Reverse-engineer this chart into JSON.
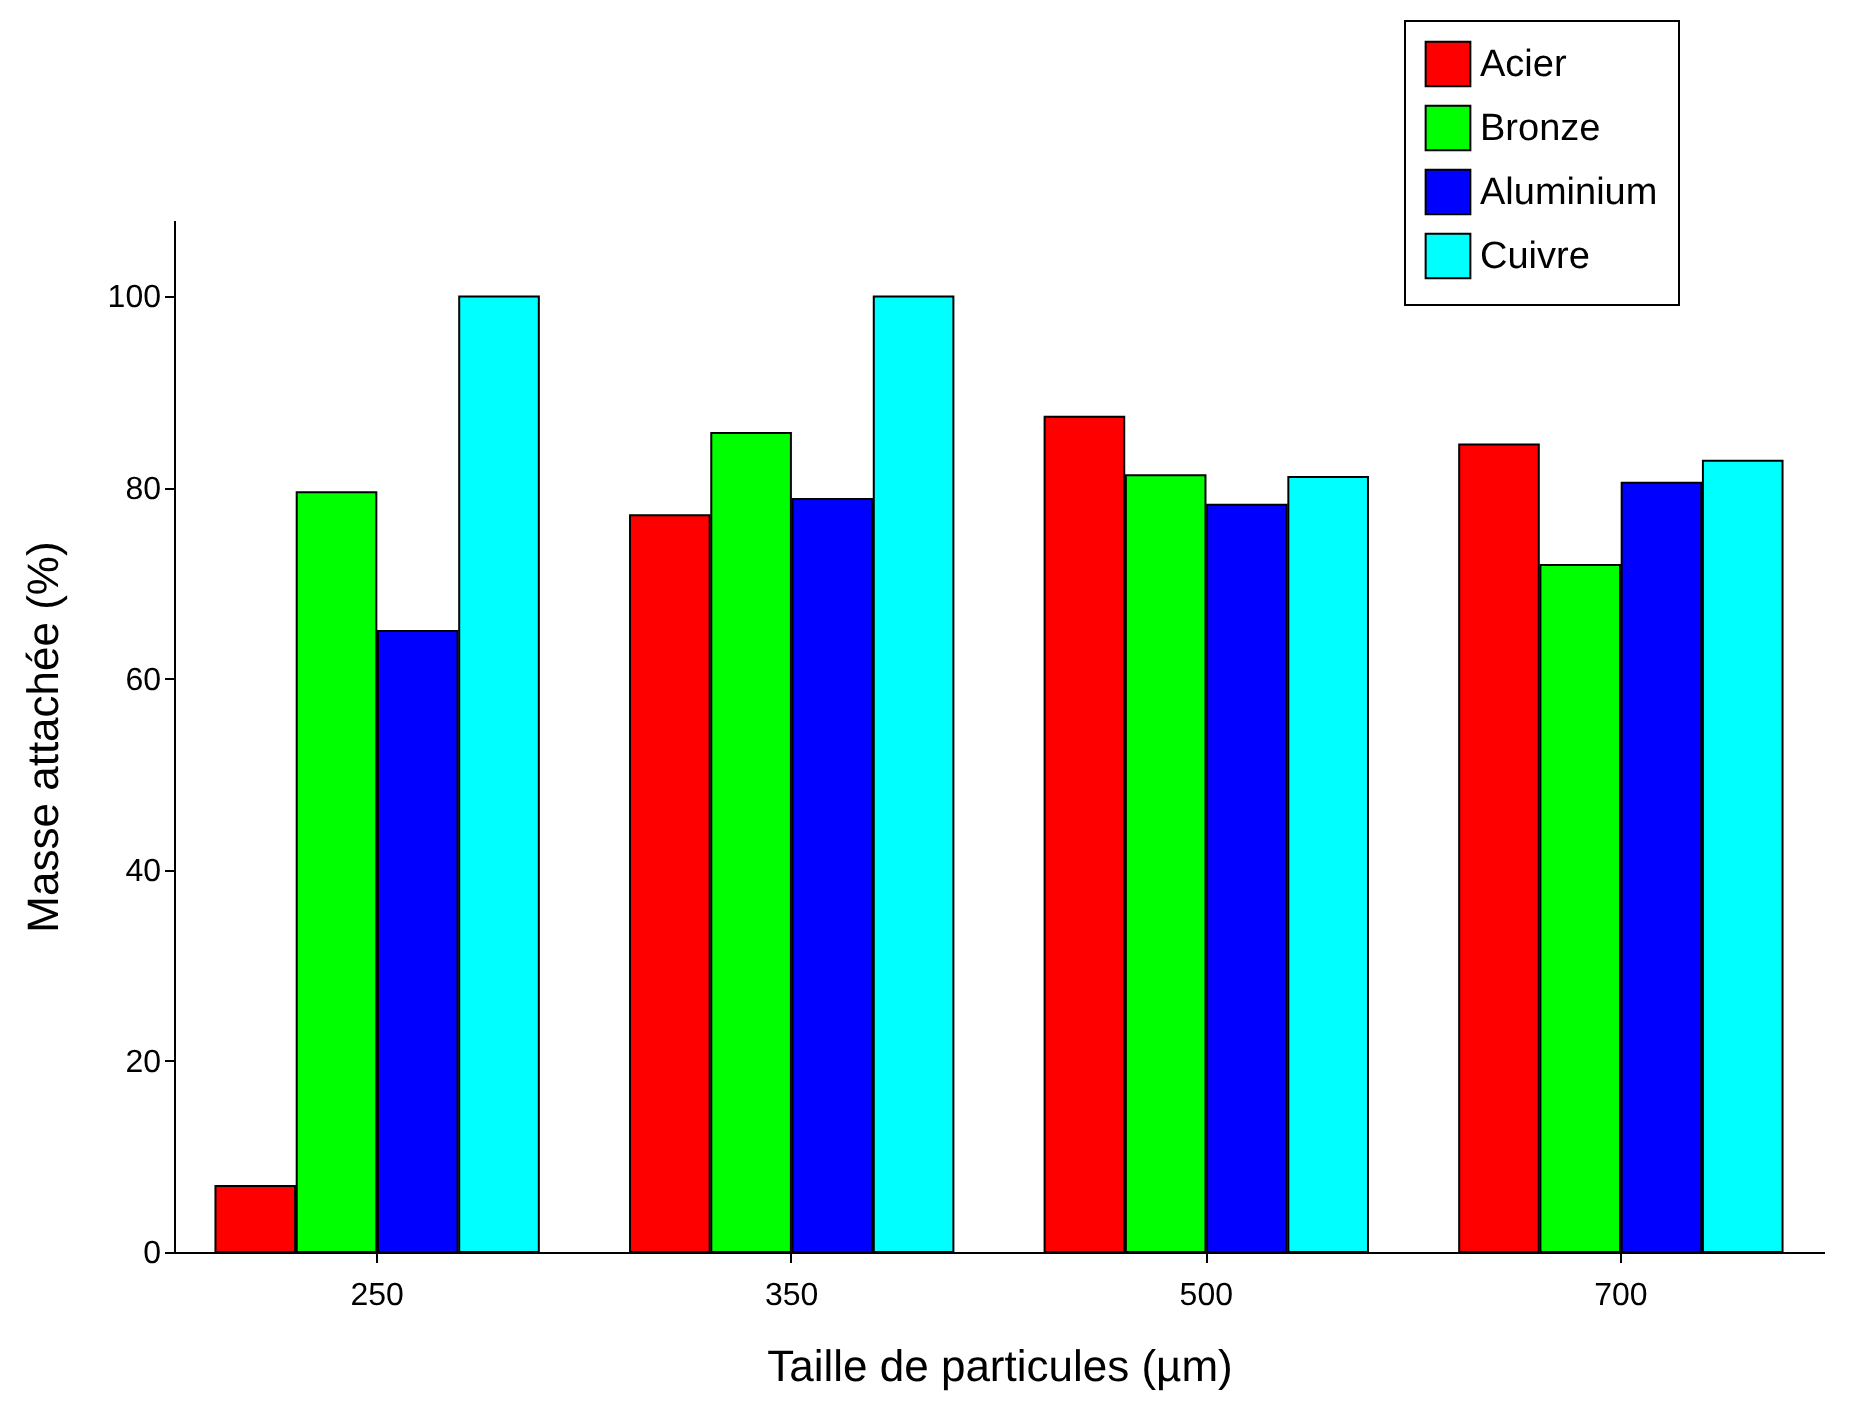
{
  "chart_data": {
    "type": "bar",
    "xlabel": "Taille de particules (µm)",
    "ylabel": "Masse attachée (%)",
    "categories": [
      "250",
      "350",
      "500",
      "700"
    ],
    "series": [
      {
        "name": "Acier",
        "color": "#ff0000",
        "values": [
          6.9,
          77.1,
          87.4,
          84.5
        ]
      },
      {
        "name": "Bronze",
        "color": "#00ff00",
        "values": [
          79.5,
          85.7,
          81.3,
          71.9
        ]
      },
      {
        "name": "Aluminium",
        "color": "#0000ff",
        "values": [
          65.0,
          78.8,
          78.2,
          80.5
        ]
      },
      {
        "name": "Cuivre",
        "color": "#00ffff",
        "values": [
          100,
          100,
          81.1,
          82.8
        ]
      }
    ],
    "ylim": [
      0,
      108
    ],
    "yticks": [
      0,
      20,
      40,
      60,
      80,
      100
    ],
    "grid": false,
    "legend": "top right"
  }
}
